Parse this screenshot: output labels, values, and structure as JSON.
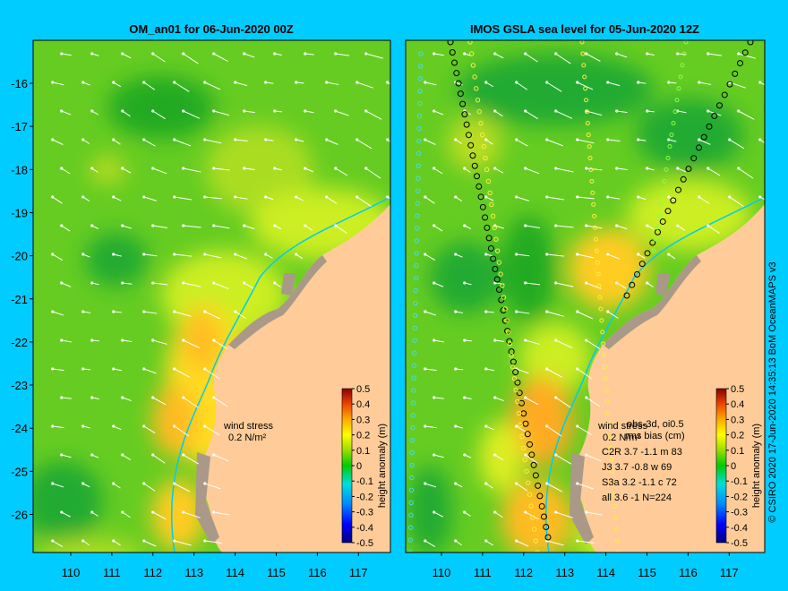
{
  "panels": [
    {
      "title": "OM_an01 for 06-Jun-2020 00Z",
      "wind_label": "wind stress",
      "wind_value": "0.2 N/m²"
    },
    {
      "title": "IMOS GSLA sea level  for 05-Jun-2020 12Z",
      "wind_label": "wind stress",
      "wind_value": "0.2 N/m²",
      "legend_header": "obs-3d, oi0.5",
      "legend_sub": "rms bias (cm)",
      "stats": [
        {
          "label": "C2R",
          "rms": "3.7",
          "bias": "-1.1",
          "code": "m",
          "n": "83"
        },
        {
          "label": "J3",
          "rms": "3.7",
          "bias": "-0.8",
          "code": "w",
          "n": "69"
        },
        {
          "label": "S3a",
          "rms": "3.2",
          "bias": "-1.1",
          "code": "c",
          "n": "72"
        },
        {
          "label": "all",
          "rms": "3.6",
          "bias": "-1",
          "code": "",
          "n": "N=224"
        }
      ]
    }
  ],
  "axes": {
    "lat_ticks": [
      "-16",
      "-17",
      "-18",
      "-19",
      "-20",
      "-21",
      "-22",
      "-23",
      "-24",
      "-25",
      "-26"
    ],
    "lon_ticks": [
      "110",
      "111",
      "112",
      "113",
      "114",
      "115",
      "116",
      "117"
    ]
  },
  "colorbar": {
    "label": "height anomaly (m)",
    "ticks": [
      "0.5",
      "0.4",
      "0.3",
      "0.2",
      "0.1",
      "0",
      "-0.1",
      "-0.2",
      "-0.3",
      "-0.4",
      "-0.5"
    ]
  },
  "credit": "© CSIRO 2020   17-Jun-2020 14:35:13 BoM OceanMAPS v3",
  "colors": {
    "background": "#00ccff",
    "land": "#ffcc99",
    "coast": "#aa9988",
    "track": "#00ccee"
  }
}
